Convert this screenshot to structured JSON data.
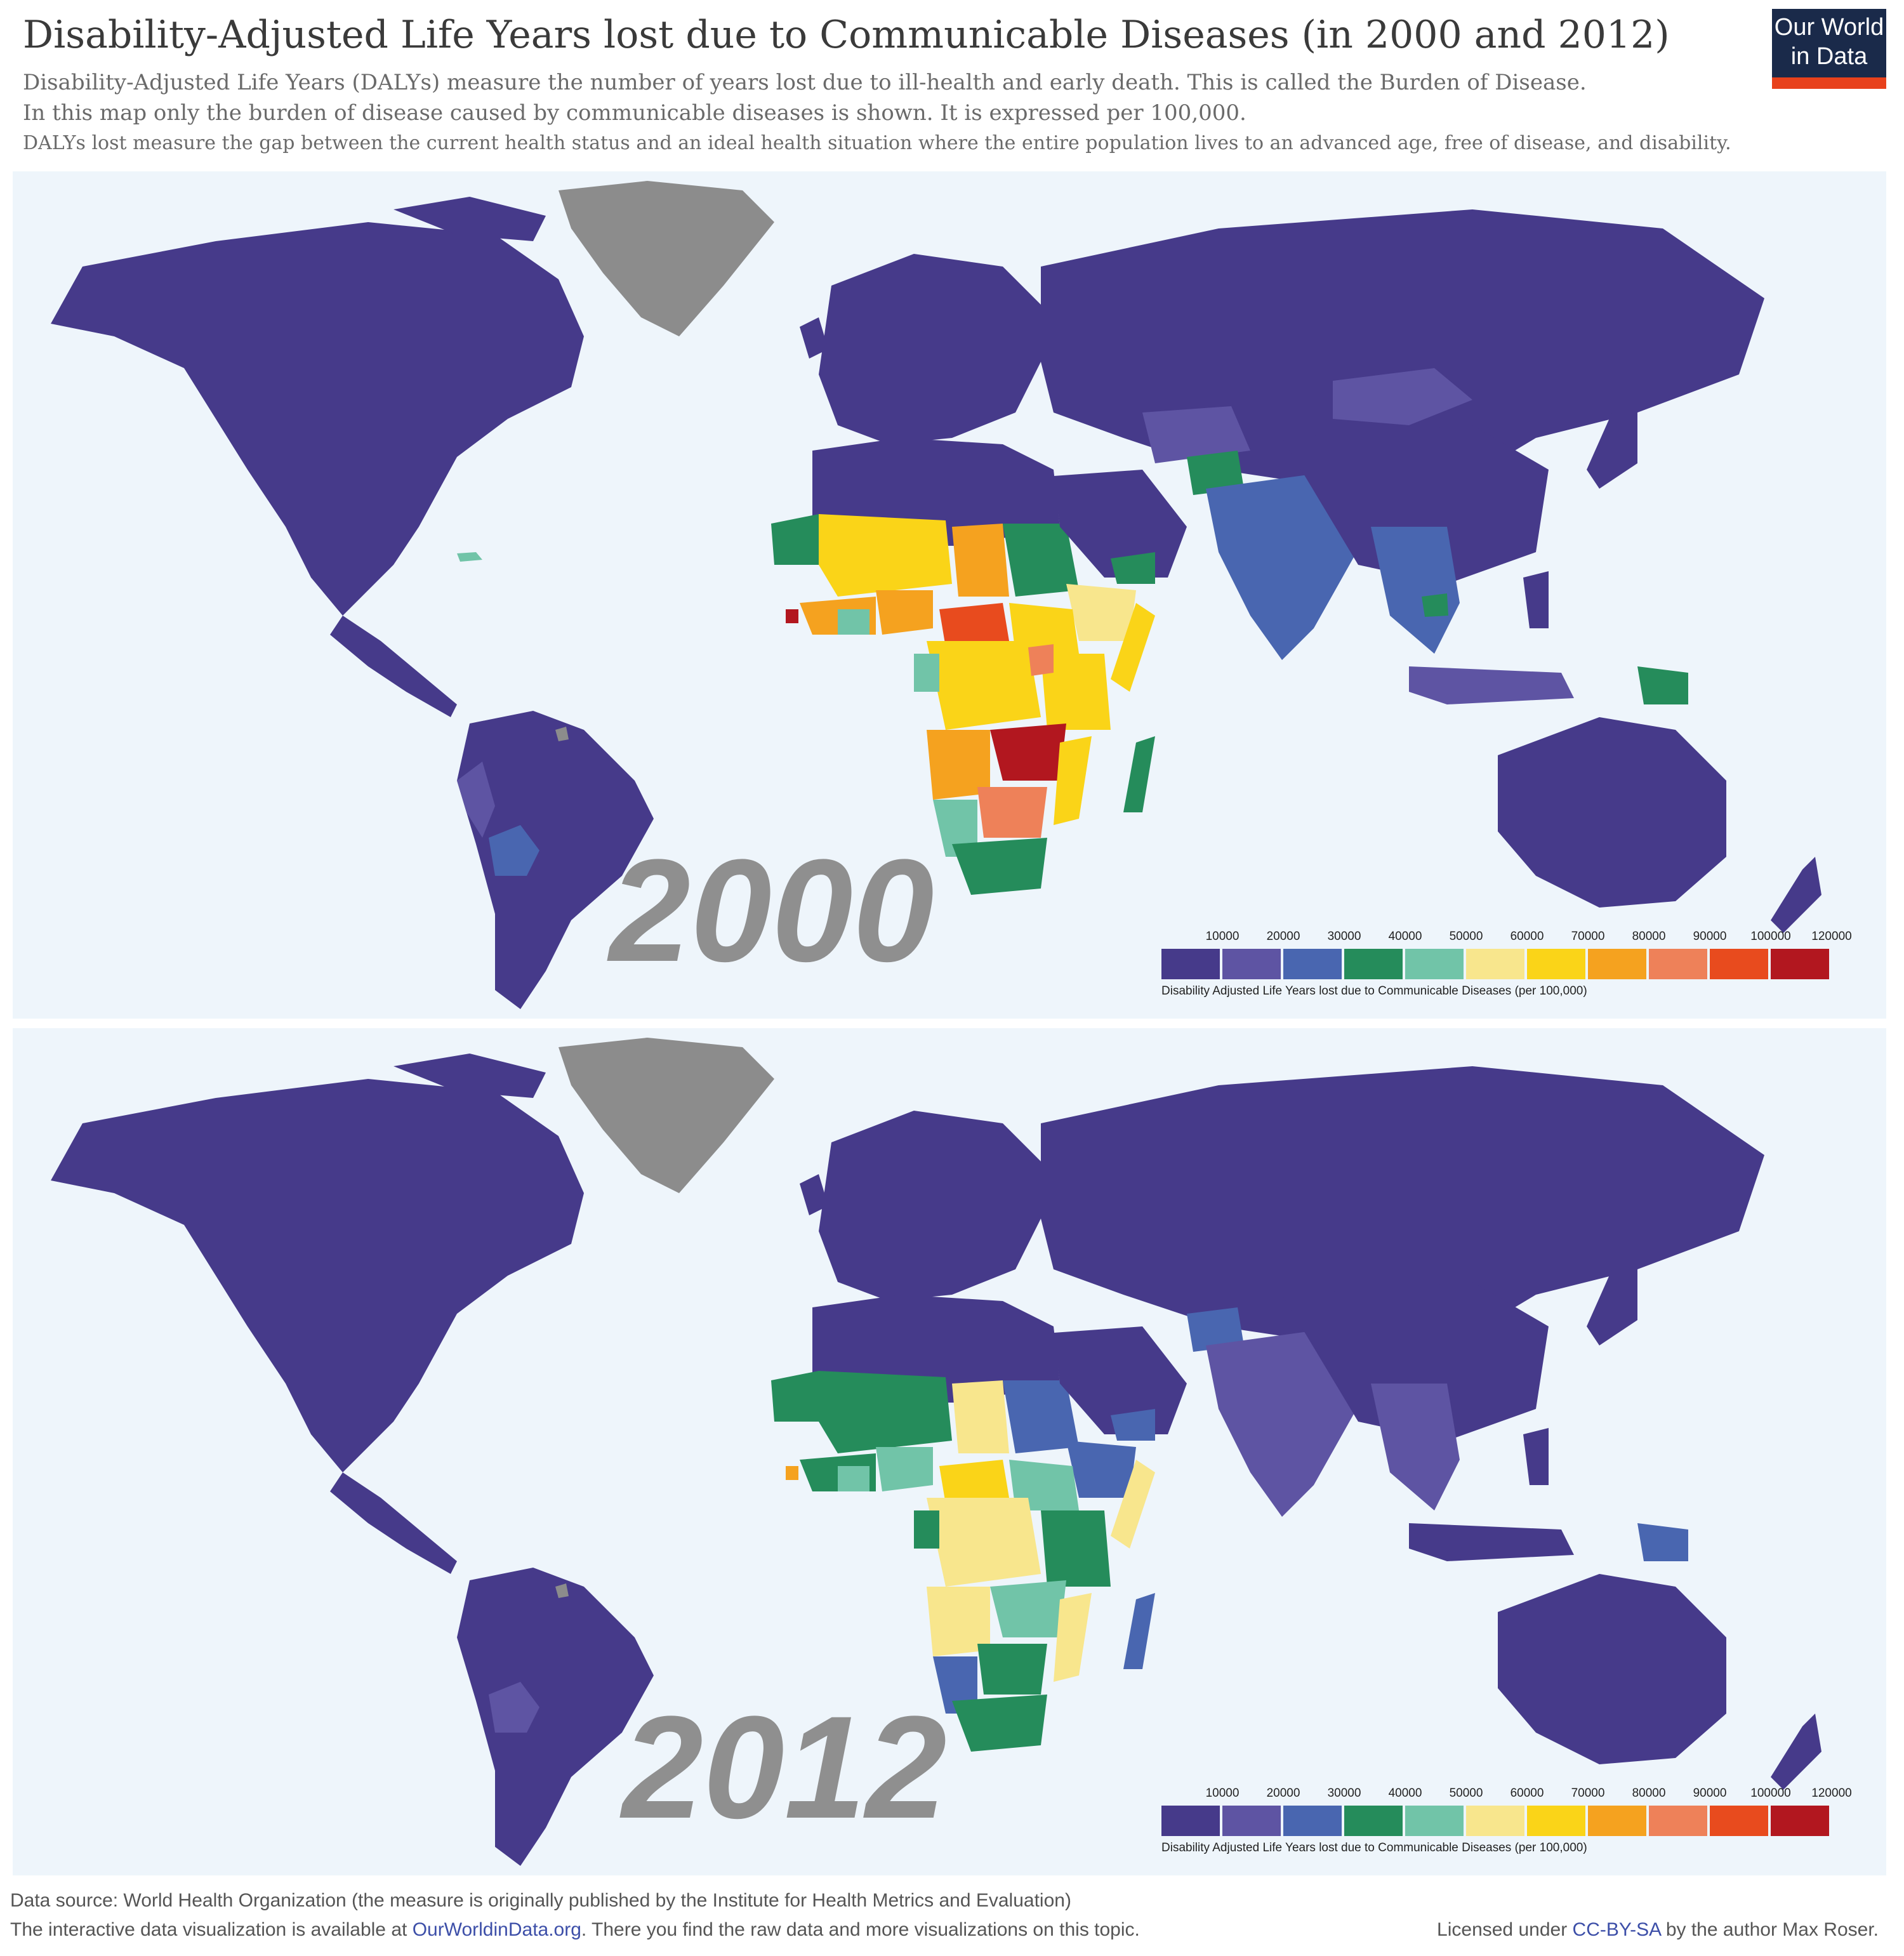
{
  "header": {
    "title": "Disability-Adjusted Life Years lost due to Communicable Diseases (in 2000 and 2012)",
    "subtitle_1": "Disability-Adjusted Life Years (DALYs) measure the number of years lost due to ill-health and early death. This is called the Burden of Disease.",
    "subtitle_2": "In this map only the burden of disease caused by communicable diseases is shown. It is expressed per 100,000.",
    "subtitle_3": "DALYs lost measure the gap between the current health status and an ideal health situation where the entire population lives to an advanced age, free of disease, and disability."
  },
  "logo": {
    "line1": "Our World",
    "line2": "in Data"
  },
  "maps": [
    {
      "year": "2000"
    },
    {
      "year": "2012"
    }
  ],
  "legend": {
    "ticks": [
      "10000",
      "20000",
      "30000",
      "40000",
      "50000",
      "60000",
      "70000",
      "80000",
      "90000",
      "100000",
      "120000"
    ],
    "colors": [
      "#463a8a",
      "#5e54a3",
      "#4966b0",
      "#258c5b",
      "#71c4a8",
      "#f8e68d",
      "#fad418",
      "#f5a21f",
      "#ee8159",
      "#e84b1e",
      "#b2171f"
    ],
    "caption": "Disability Adjusted Life Years lost due to Communicable Diseases (per 100,000)"
  },
  "colors": {
    "ocean": "#eef5fb",
    "no_data": "#8c8c8c"
  },
  "footer": {
    "source": "Data source: World Health Organization (the measure is originally published by the Institute for Health Metrics and Evaluation)",
    "interactive_prefix": "The interactive data visualization is available at ",
    "interactive_link": "OurWorldinData.org",
    "interactive_suffix": ". There you find the raw data and more visualizations on this topic.",
    "license_prefix": "Licensed under ",
    "license_link": "CC-BY-SA",
    "license_suffix": " by the author Max Roser."
  }
}
